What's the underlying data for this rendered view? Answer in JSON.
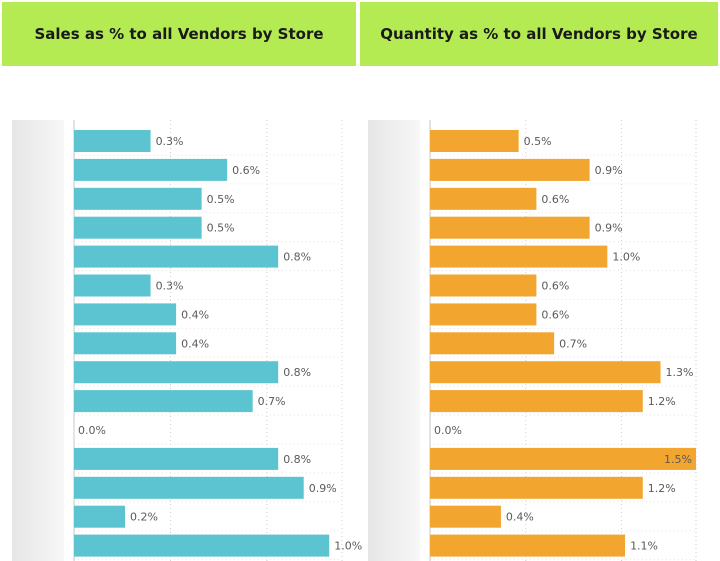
{
  "colors": {
    "header_bg": "#b5eb52",
    "sales_bar": "#5bc4d0",
    "quantity_bar": "#f2a62f",
    "grid": "#cfcfcf"
  },
  "headers": {
    "left": "Sales as % to all Vendors by Store",
    "right": "Quantity as % to all Vendors by Store"
  },
  "chart_data": [
    {
      "type": "bar",
      "orientation": "horizontal",
      "title": "Sales as % to all Vendors by Store",
      "xlim": [
        0,
        1.05
      ],
      "grid": true,
      "series": [
        {
          "values": [
            0.3,
            0.6,
            0.5,
            0.5,
            0.8,
            0.3,
            0.4,
            0.4,
            0.8,
            0.7,
            0.0,
            0.8,
            0.9,
            0.2,
            1.0
          ],
          "labels": [
            "0.3%",
            "0.6%",
            "0.5%",
            "0.5%",
            "0.8%",
            "0.3%",
            "0.4%",
            "0.4%",
            "0.8%",
            "0.7%",
            "0.0%",
            "0.8%",
            "0.9%",
            "0.2%",
            "1.0%"
          ]
        }
      ]
    },
    {
      "type": "bar",
      "orientation": "horizontal",
      "title": "Quantity as % to all Vendors by Store",
      "xlim": [
        0,
        1.5
      ],
      "grid": true,
      "series": [
        {
          "values": [
            0.5,
            0.9,
            0.6,
            0.9,
            1.0,
            0.6,
            0.6,
            0.7,
            1.3,
            1.2,
            0.0,
            1.5,
            1.2,
            0.4,
            1.1
          ],
          "labels": [
            "0.5%",
            "0.9%",
            "0.6%",
            "0.9%",
            "1.0%",
            "0.6%",
            "0.6%",
            "0.7%",
            "1.3%",
            "1.2%",
            "0.0%",
            "1.5%",
            "1.2%",
            "0.4%",
            "1.1%"
          ]
        }
      ]
    }
  ]
}
